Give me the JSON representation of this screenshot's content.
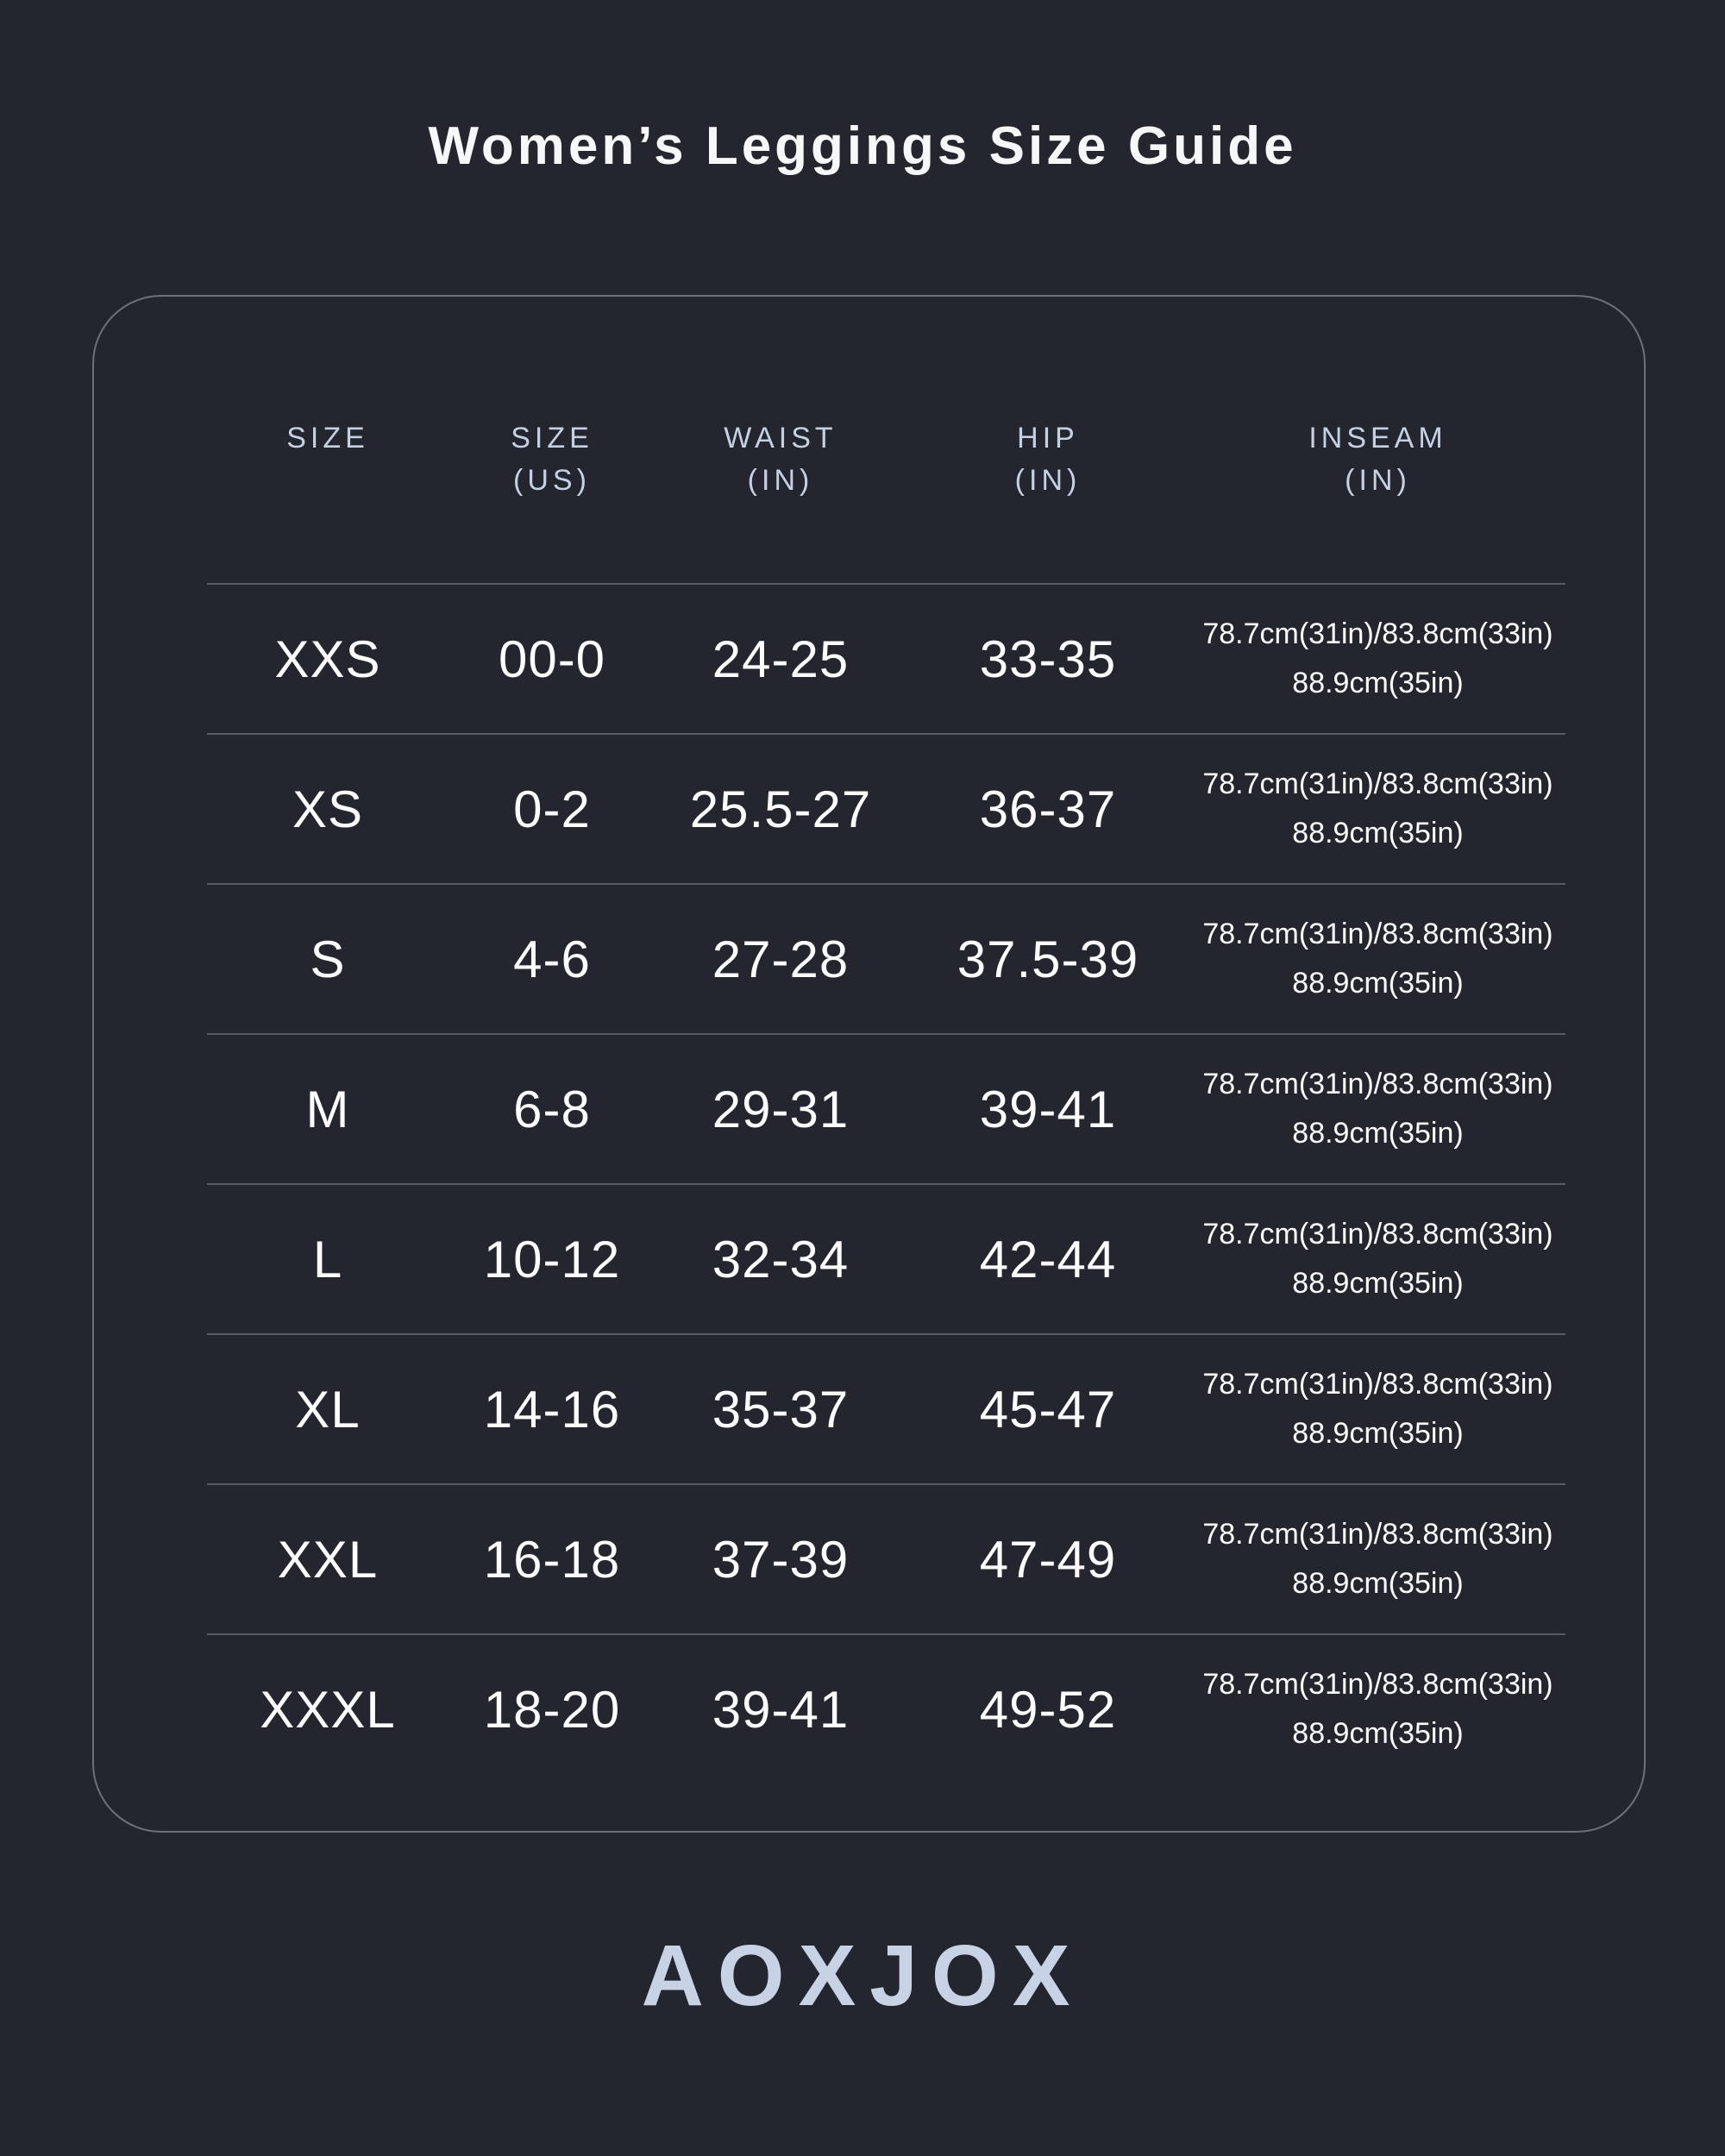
{
  "page": {
    "title": "Women’s Leggings Size Guide",
    "brand": "AOXJOX"
  },
  "colors": {
    "background": "#23262f",
    "title_text": "#f6f7f9",
    "header_text": "#c5d0e2",
    "body_text": "#fcfcfd",
    "divider": "#575b64",
    "card_border": "#6b7079",
    "logo_text": "#c7d3e5"
  },
  "table": {
    "columns": [
      {
        "line1": "SIZE",
        "line2": ""
      },
      {
        "line1": "SIZE",
        "line2": "(US)"
      },
      {
        "line1": "WAIST",
        "line2": "(IN)"
      },
      {
        "line1": "HIP",
        "line2": "(IN)"
      },
      {
        "line1": "INSEAM",
        "line2": "(IN)"
      }
    ],
    "rows": [
      {
        "size": "XXS",
        "size_us": "00-0",
        "waist": "24-25",
        "hip": "33-35",
        "inseam_line1": "78.7cm(31in)/83.8cm(33in)",
        "inseam_line2": "88.9cm(35in)"
      },
      {
        "size": "XS",
        "size_us": "0-2",
        "waist": "25.5-27",
        "hip": "36-37",
        "inseam_line1": "78.7cm(31in)/83.8cm(33in)",
        "inseam_line2": "88.9cm(35in)"
      },
      {
        "size": "S",
        "size_us": "4-6",
        "waist": "27-28",
        "hip": "37.5-39",
        "inseam_line1": "78.7cm(31in)/83.8cm(33in)",
        "inseam_line2": "88.9cm(35in)"
      },
      {
        "size": "M",
        "size_us": "6-8",
        "waist": "29-31",
        "hip": "39-41",
        "inseam_line1": "78.7cm(31in)/83.8cm(33in)",
        "inseam_line2": "88.9cm(35in)"
      },
      {
        "size": "L",
        "size_us": "10-12",
        "waist": "32-34",
        "hip": "42-44",
        "inseam_line1": "78.7cm(31in)/83.8cm(33in)",
        "inseam_line2": "88.9cm(35in)"
      },
      {
        "size": "XL",
        "size_us": "14-16",
        "waist": "35-37",
        "hip": "45-47",
        "inseam_line1": "78.7cm(31in)/83.8cm(33in)",
        "inseam_line2": "88.9cm(35in)"
      },
      {
        "size": "XXL",
        "size_us": "16-18",
        "waist": "37-39",
        "hip": "47-49",
        "inseam_line1": "78.7cm(31in)/83.8cm(33in)",
        "inseam_line2": "88.9cm(35in)"
      },
      {
        "size": "XXXL",
        "size_us": "18-20",
        "waist": "39-41",
        "hip": "49-52",
        "inseam_line1": "78.7cm(31in)/83.8cm(33in)",
        "inseam_line2": "88.9cm(35in)"
      }
    ]
  }
}
